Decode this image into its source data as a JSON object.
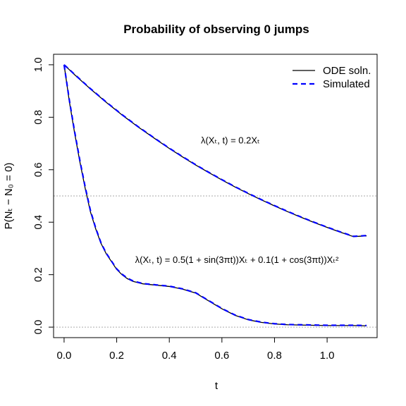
{
  "chart_data": {
    "type": "line",
    "title": "Probability of observing 0 jumps",
    "xlabel": "t",
    "ylabel": "P(Nₜ − N₀ = 0)",
    "xlim": [
      -0.04,
      1.19
    ],
    "ylim": [
      -0.04,
      1.04
    ],
    "xticks": [
      0.0,
      0.2,
      0.4,
      0.6,
      0.8,
      1.0
    ],
    "xtick_labels": [
      "0.0",
      "0.2",
      "0.4",
      "0.6",
      "0.8",
      "1.0"
    ],
    "yticks": [
      0.0,
      0.2,
      0.4,
      0.6,
      0.8,
      1.0
    ],
    "ytick_labels": [
      "0.0",
      "0.2",
      "0.4",
      "0.6",
      "0.8",
      "1.0"
    ],
    "reference_lines": [
      0.5,
      0.0
    ],
    "legend": {
      "position": "top-right",
      "entries": [
        {
          "label": "ODE soln.",
          "color": "#000000",
          "style": "solid"
        },
        {
          "label": "Simulated",
          "color": "#0000FF",
          "style": "dashed"
        }
      ]
    },
    "annotations": [
      {
        "text": "λ(Xₜ, t) = 0.2Xₜ",
        "x": 0.52,
        "y": 0.7
      },
      {
        "text": "λ(Xₜ, t) = 0.5(1 + sin(3πt))Xₜ + 0.1(1 + cos(3πt))Xₜ²",
        "x": 0.27,
        "y": 0.245
      }
    ],
    "x": [
      0.0,
      0.02,
      0.04,
      0.06,
      0.08,
      0.1,
      0.12,
      0.14,
      0.16,
      0.18,
      0.2,
      0.22,
      0.24,
      0.26,
      0.28,
      0.3,
      0.35,
      0.4,
      0.45,
      0.5,
      0.55,
      0.6,
      0.65,
      0.7,
      0.75,
      0.8,
      0.85,
      0.9,
      0.95,
      1.0,
      1.05,
      1.1,
      1.15
    ],
    "series": [
      {
        "name": "ODE soln.",
        "curves": [
          {
            "values": [
              1.0,
              0.981,
              0.962,
              0.944,
              0.926,
              0.908,
              0.891,
              0.874,
              0.857,
              0.841,
              0.825,
              0.809,
              0.794,
              0.779,
              0.764,
              0.75,
              0.715,
              0.681,
              0.649,
              0.618,
              0.589,
              0.561,
              0.534,
              0.509,
              0.485,
              0.462,
              0.44,
              0.419,
              0.399,
              0.38,
              0.362,
              0.345,
              0.348
            ]
          },
          {
            "values": [
              1.0,
              0.86,
              0.74,
              0.63,
              0.53,
              0.44,
              0.375,
              0.32,
              0.28,
              0.25,
              0.22,
              0.2,
              0.185,
              0.175,
              0.17,
              0.165,
              0.16,
              0.155,
              0.145,
              0.13,
              0.1,
              0.07,
              0.045,
              0.028,
              0.018,
              0.012,
              0.009,
              0.008,
              0.007,
              0.006,
              0.006,
              0.006,
              0.005
            ]
          }
        ]
      },
      {
        "name": "Simulated",
        "curves": [
          {
            "values": [
              1.0,
              0.982,
              0.963,
              0.945,
              0.927,
              0.909,
              0.892,
              0.875,
              0.858,
              0.842,
              0.826,
              0.81,
              0.795,
              0.78,
              0.765,
              0.751,
              0.716,
              0.682,
              0.65,
              0.619,
              0.59,
              0.562,
              0.535,
              0.51,
              0.486,
              0.463,
              0.441,
              0.42,
              0.4,
              0.381,
              0.363,
              0.346,
              0.349
            ]
          },
          {
            "values": [
              1.0,
              0.865,
              0.745,
              0.635,
              0.535,
              0.445,
              0.378,
              0.322,
              0.282,
              0.252,
              0.222,
              0.202,
              0.187,
              0.177,
              0.171,
              0.166,
              0.161,
              0.156,
              0.146,
              0.131,
              0.101,
              0.071,
              0.046,
              0.029,
              0.019,
              0.013,
              0.01,
              0.009,
              0.008,
              0.007,
              0.007,
              0.007,
              0.006
            ]
          }
        ]
      }
    ]
  }
}
